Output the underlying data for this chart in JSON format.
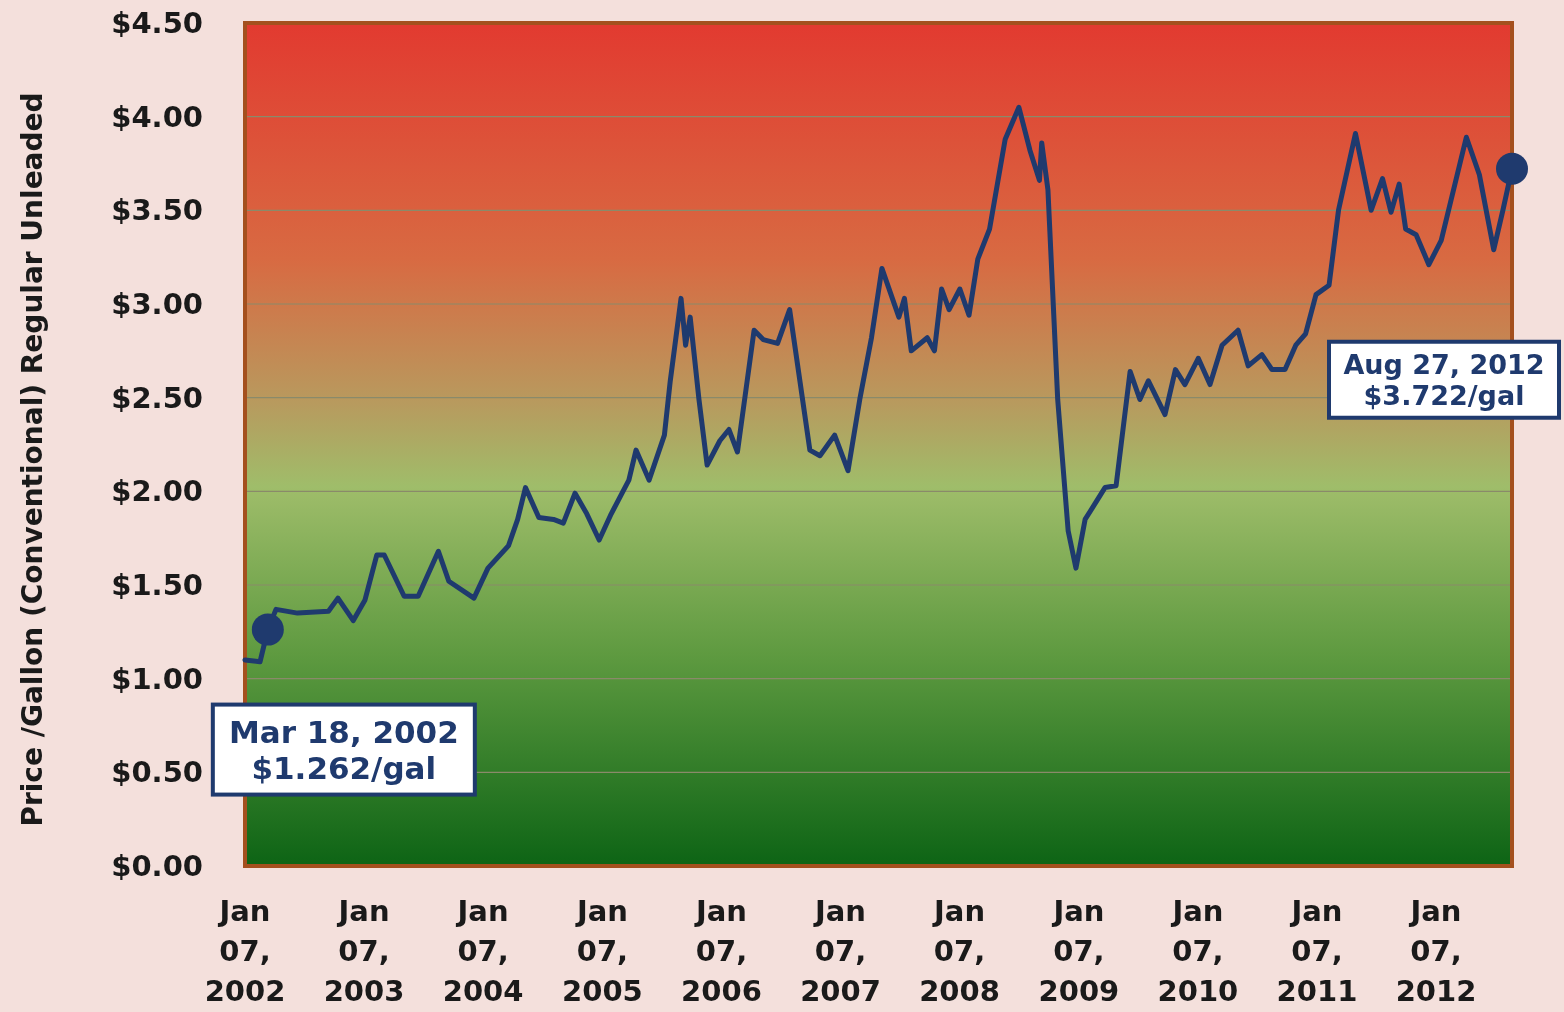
{
  "chart_data": {
    "type": "line",
    "ylabel": "Price /Gallon (Conventional) Regular Unleaded",
    "xlim": [
      "2002-01-07",
      "2012-08-27"
    ],
    "xticks": [
      {
        "value": "2002-01-07",
        "label": "Jan 07, 2002"
      },
      {
        "value": "2003-01-07",
        "label": "Jan 07, 2003"
      },
      {
        "value": "2004-01-07",
        "label": "Jan 07, 2004"
      },
      {
        "value": "2005-01-07",
        "label": "Jan 07, 2005"
      },
      {
        "value": "2006-01-07",
        "label": "Jan 07, 2006"
      },
      {
        "value": "2007-01-07",
        "label": "Jan 07, 2007"
      },
      {
        "value": "2008-01-07",
        "label": "Jan 07, 2008"
      },
      {
        "value": "2009-01-07",
        "label": "Jan 07, 2009"
      },
      {
        "value": "2010-01-07",
        "label": "Jan 07, 2010"
      },
      {
        "value": "2011-01-07",
        "label": "Jan 07, 2011"
      },
      {
        "value": "2012-01-07",
        "label": "Jan 07, 2012"
      }
    ],
    "ylim": [
      0,
      4.5
    ],
    "yticks": [
      {
        "value": 0,
        "label": "$0.00"
      },
      {
        "value": 0.5,
        "label": "$0.50"
      },
      {
        "value": 1,
        "label": "$1.00"
      },
      {
        "value": 1.5,
        "label": "$1.50"
      },
      {
        "value": 2,
        "label": "$2.00"
      },
      {
        "value": 2.5,
        "label": "$2.50"
      },
      {
        "value": 3,
        "label": "$3.00"
      },
      {
        "value": 3.5,
        "label": "$3.50"
      },
      {
        "value": 4,
        "label": "$4.00"
      },
      {
        "value": 4.5,
        "label": "$4.50"
      }
    ],
    "grid": "y",
    "series": [
      {
        "type": "line",
        "color": "#1f3a6e",
        "marker": "none",
        "x": [
          "2002-01-07",
          "2002-02-22",
          "2002-03-18",
          "2002-04-12",
          "2002-06-17",
          "2002-09-20",
          "2002-10-19",
          "2002-12-05",
          "2003-01-10",
          "2003-02-15",
          "2003-03-10",
          "2003-05-10",
          "2003-06-22",
          "2003-08-23",
          "2003-09-24",
          "2003-12-10",
          "2004-01-22",
          "2004-03-25",
          "2004-04-22",
          "2004-05-16",
          "2004-06-26",
          "2004-08-10",
          "2004-09-09",
          "2004-10-15",
          "2004-11-20",
          "2004-12-28",
          "2005-02-03",
          "2005-03-29",
          "2005-04-20",
          "2005-05-30",
          "2005-07-16",
          "2005-08-03",
          "2005-09-05",
          "2005-09-19",
          "2005-10-03",
          "2005-10-30",
          "2005-11-24",
          "2006-01-02",
          "2006-01-30",
          "2006-02-25",
          "2006-04-17",
          "2006-05-15",
          "2006-06-28",
          "2006-08-04",
          "2006-10-05",
          "2006-11-05",
          "2006-12-20",
          "2007-01-30",
          "2007-03-07",
          "2007-04-12",
          "2007-05-14",
          "2007-07-05",
          "2007-07-22",
          "2007-08-12",
          "2007-09-30",
          "2007-10-22",
          "2007-11-13",
          "2007-12-06",
          "2008-01-08",
          "2008-02-05",
          "2008-03-03",
          "2008-04-08",
          "2008-05-26",
          "2008-07-07",
          "2008-08-10",
          "2008-09-08",
          "2008-09-15",
          "2008-10-04",
          "2008-11-03",
          "2008-12-05",
          "2008-12-29",
          "2009-01-26",
          "2009-02-24",
          "2009-03-28",
          "2009-05-01",
          "2009-06-13",
          "2009-07-13",
          "2009-08-08",
          "2009-09-28",
          "2009-10-30",
          "2009-11-28",
          "2010-01-08",
          "2010-02-13",
          "2010-03-22",
          "2010-05-10",
          "2010-06-10",
          "2010-07-22",
          "2010-08-22",
          "2010-10-01",
          "2010-11-03",
          "2010-12-03",
          "2011-01-04",
          "2011-02-13",
          "2011-03-14",
          "2011-05-05",
          "2011-06-22",
          "2011-07-27",
          "2011-08-22",
          "2011-09-16",
          "2011-10-06",
          "2011-11-07",
          "2011-12-16",
          "2012-01-23",
          "2012-04-09",
          "2012-05-19",
          "2012-07-02",
          "2012-07-30",
          "2012-08-27"
        ],
        "values": [
          1.1,
          1.09,
          1.262,
          1.37,
          1.35,
          1.36,
          1.43,
          1.31,
          1.42,
          1.66,
          1.66,
          1.44,
          1.44,
          1.68,
          1.52,
          1.43,
          1.59,
          1.71,
          1.85,
          2.02,
          1.86,
          1.85,
          1.83,
          1.99,
          1.88,
          1.74,
          1.88,
          2.06,
          2.22,
          2.06,
          2.3,
          2.59,
          3.03,
          2.78,
          2.93,
          2.49,
          2.14,
          2.27,
          2.33,
          2.21,
          2.86,
          2.81,
          2.79,
          2.97,
          2.22,
          2.19,
          2.3,
          2.11,
          2.49,
          2.82,
          3.19,
          2.93,
          3.03,
          2.75,
          2.82,
          2.75,
          3.08,
          2.97,
          3.08,
          2.94,
          3.24,
          3.4,
          3.88,
          4.05,
          3.82,
          3.66,
          3.86,
          3.61,
          2.49,
          1.79,
          1.59,
          1.85,
          1.93,
          2.02,
          2.03,
          2.64,
          2.49,
          2.59,
          2.41,
          2.65,
          2.57,
          2.71,
          2.57,
          2.78,
          2.86,
          2.67,
          2.73,
          2.65,
          2.65,
          2.78,
          2.84,
          3.05,
          3.1,
          3.5,
          3.91,
          3.5,
          3.67,
          3.49,
          3.64,
          3.4,
          3.37,
          3.21,
          3.34,
          3.89,
          3.69,
          3.29,
          3.5,
          3.722
        ]
      },
      {
        "type": "scatter",
        "color": "#1f3a6e",
        "marker": "circle",
        "x": [
          "2002-03-18",
          "2012-08-27"
        ],
        "values": [
          1.262,
          3.722
        ]
      }
    ],
    "annotations": [
      "Mar 18, 2002\n$1.262/gal",
      "Aug 27, 2012\n$3.722/gal"
    ]
  }
}
